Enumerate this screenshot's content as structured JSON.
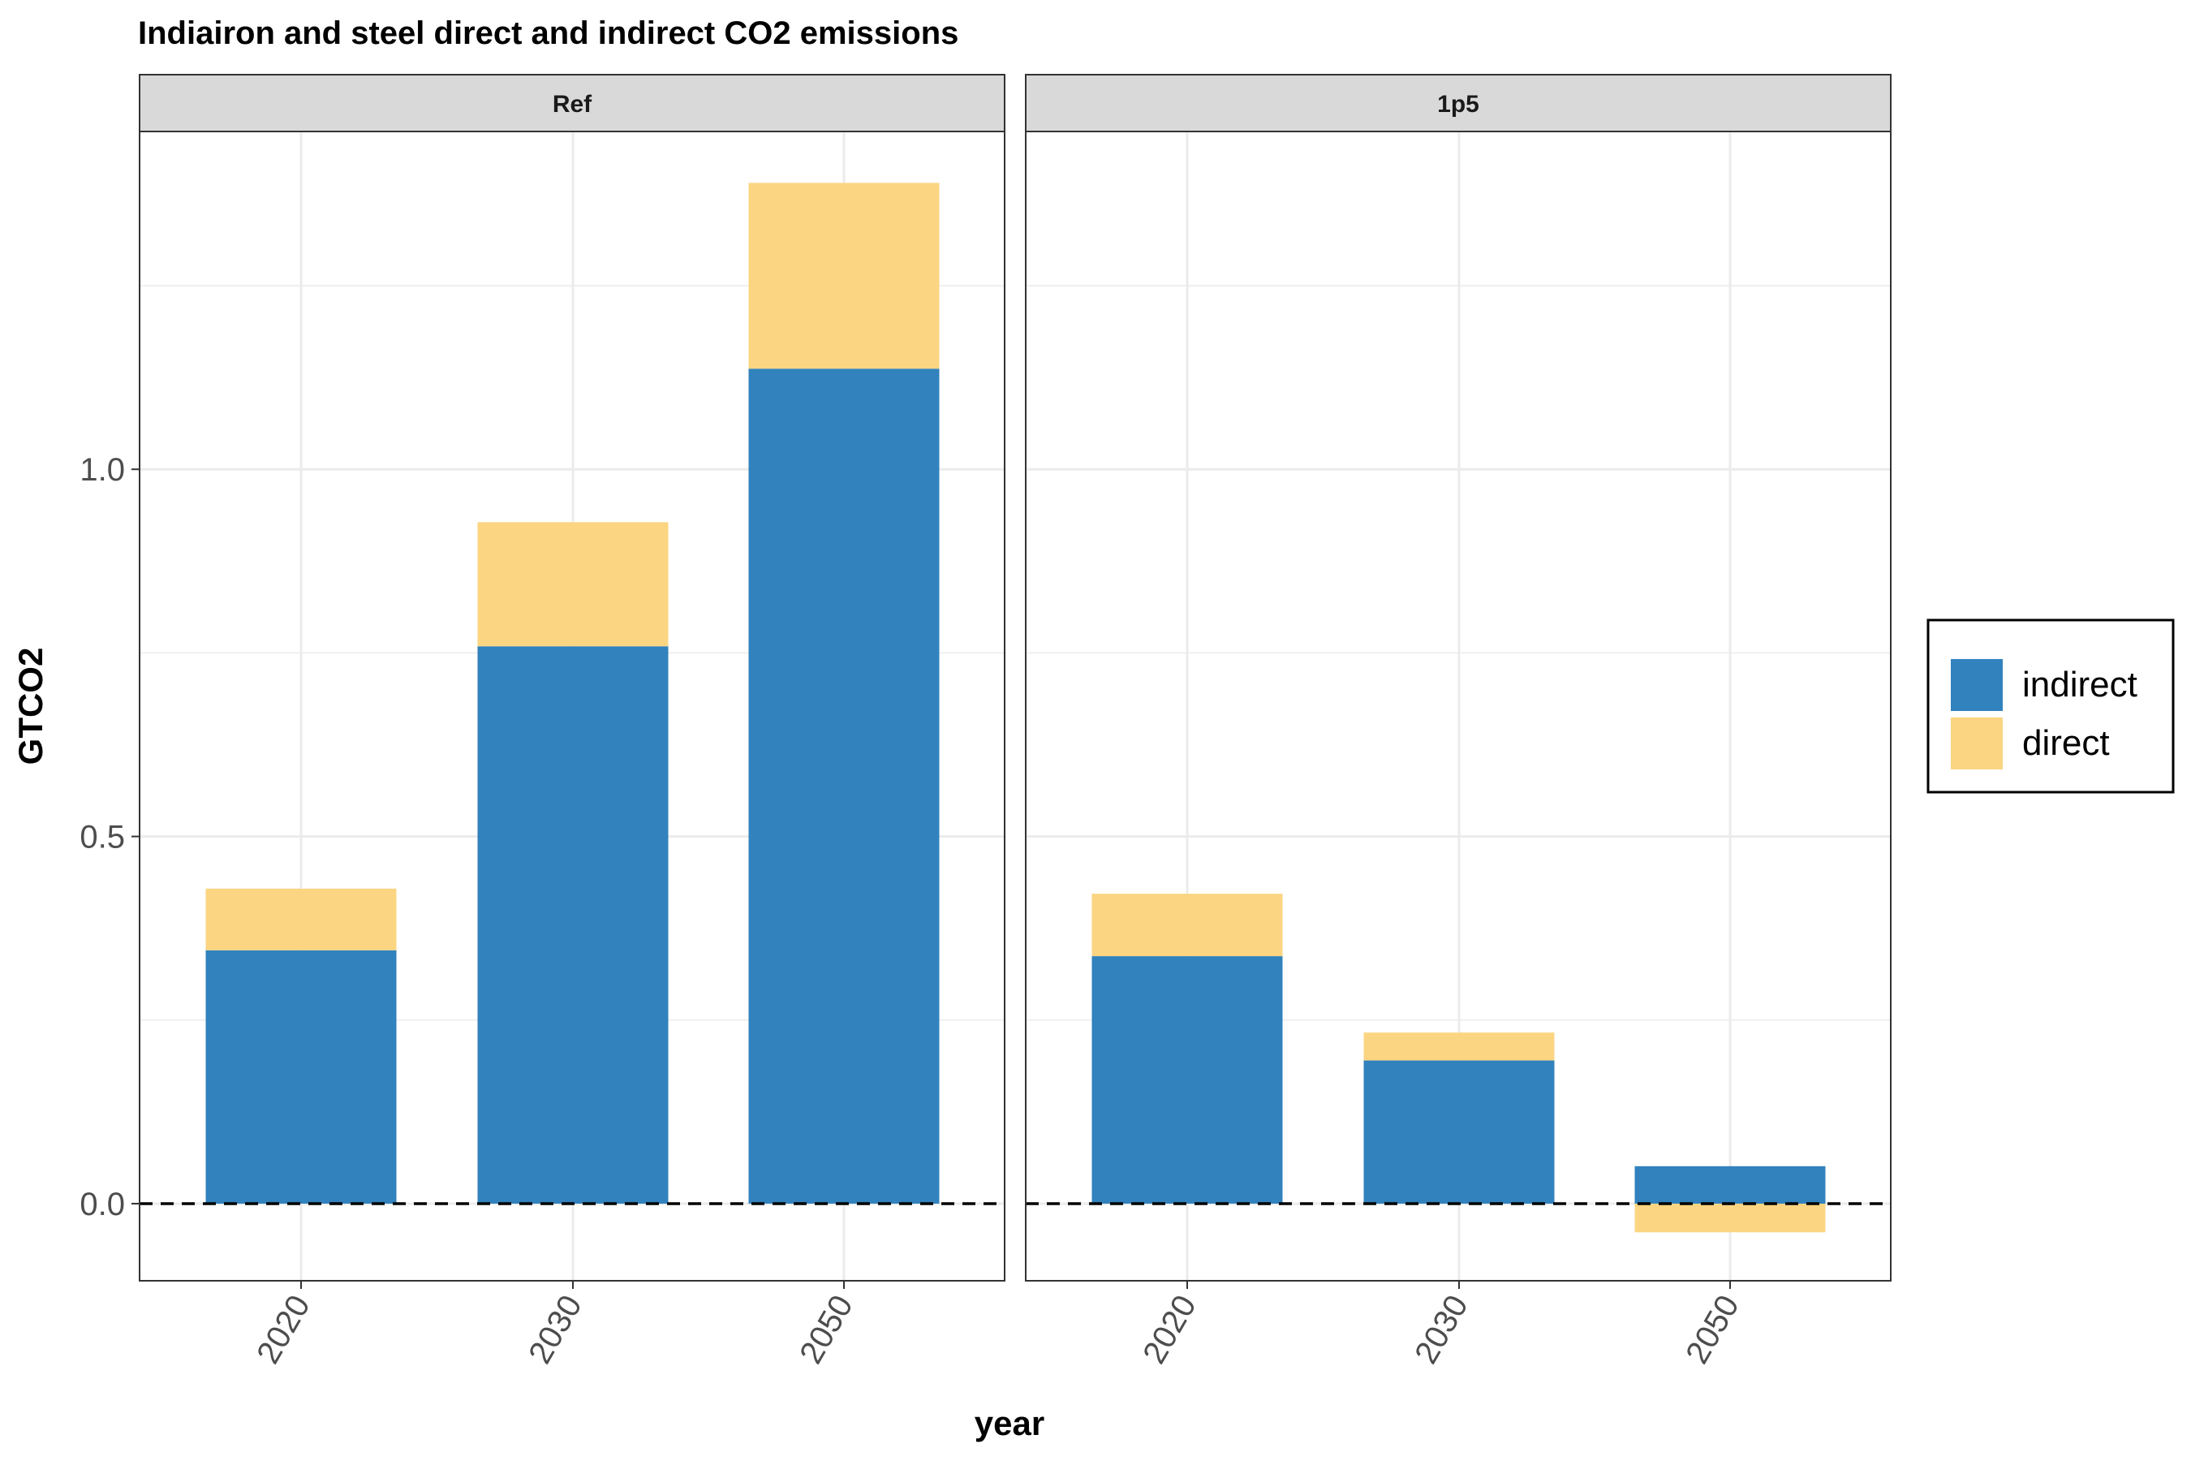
{
  "chart_data": {
    "type": "bar",
    "stacked": true,
    "title": "Indiairon and steel direct and indirect CO2 emissions",
    "xlabel": "year",
    "ylabel": "GTCO2",
    "ylim": [
      -0.105,
      1.46
    ],
    "yticks": [
      0.0,
      0.5,
      1.0
    ],
    "ytick_labels": [
      "0.0",
      "0.5",
      "1.0"
    ],
    "grid": true,
    "reference_line": {
      "y": 0,
      "style": "dashed"
    },
    "legend": {
      "position": "right",
      "entries": [
        {
          "name": "indirect",
          "color": "#3182bd"
        },
        {
          "name": "direct",
          "color": "#fbd582"
        }
      ]
    },
    "categories": [
      "2020",
      "2030",
      "2050"
    ],
    "panels": [
      {
        "label": "Ref",
        "series": [
          {
            "name": "indirect",
            "values": [
              0.345,
              0.759,
              1.137
            ]
          },
          {
            "name": "direct",
            "values": [
              0.084,
              0.169,
              0.253
            ]
          }
        ]
      },
      {
        "label": "1p5",
        "series": [
          {
            "name": "indirect",
            "values": [
              0.337,
              0.195,
              0.051
            ]
          },
          {
            "name": "direct",
            "values": [
              0.085,
              0.038,
              -0.039
            ]
          }
        ]
      }
    ]
  }
}
